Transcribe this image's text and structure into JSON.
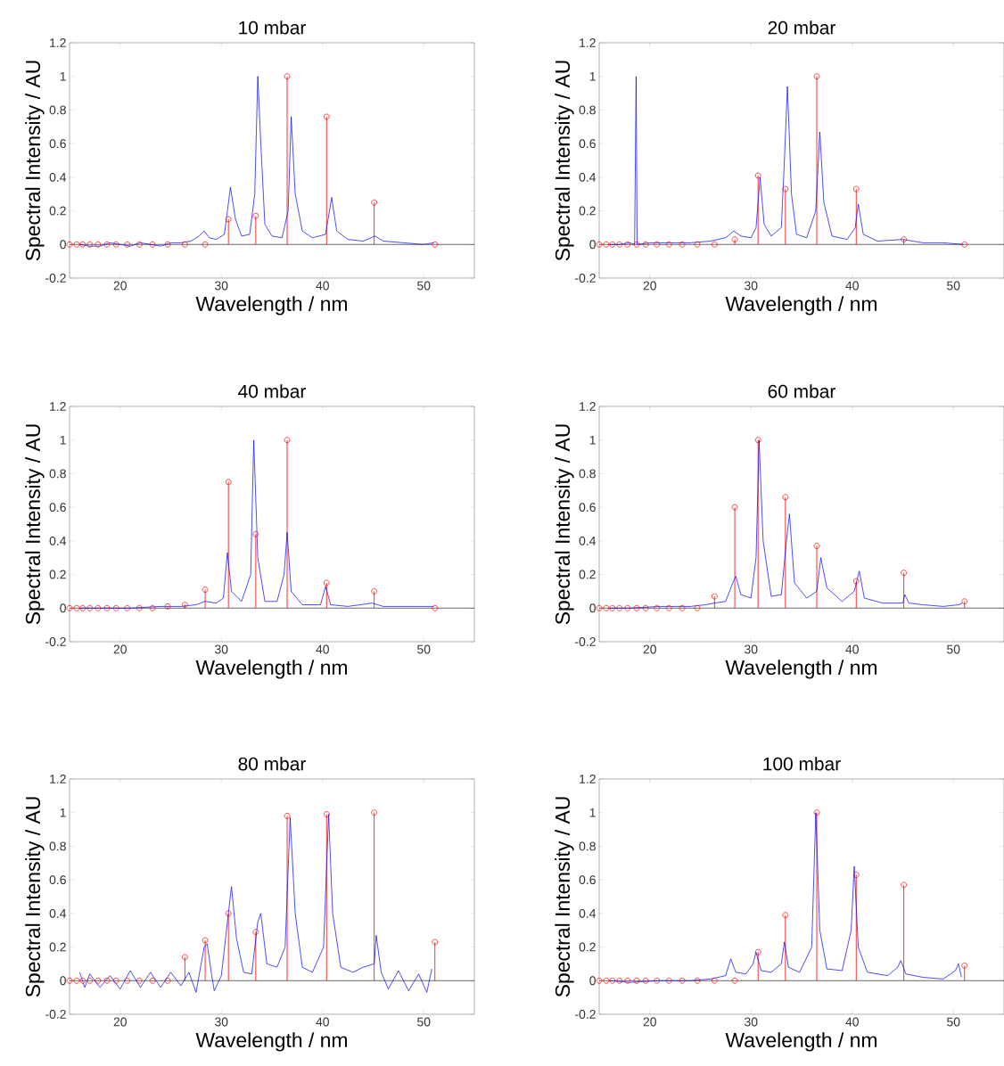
{
  "chart_data": [
    {
      "type": "line",
      "title": "10 mbar",
      "xlabel": "Wavelength / nm",
      "ylabel": "Spectral Intensity / AU",
      "xlim": [
        15,
        55
      ],
      "ylim": [
        -0.2,
        1.2
      ],
      "xticks": [
        20,
        30,
        40,
        50
      ],
      "yticks": [
        -0.2,
        0,
        0.2,
        0.4,
        0.6,
        0.8,
        1,
        1.2
      ],
      "grid": false,
      "ref_lines": [
        {
          "axis": "y",
          "value": 0,
          "color": "#000000"
        }
      ],
      "series": [
        {
          "color": "#0000ff",
          "marker": "none",
          "x": [
            16,
            17,
            18,
            19,
            20,
            21,
            22,
            23,
            24,
            25,
            26,
            27,
            27.8,
            28.3,
            28.8,
            29.5,
            30.3,
            30.9,
            31.4,
            32,
            32.8,
            33.3,
            33.6,
            33.9,
            34.3,
            35,
            36,
            36.6,
            36.9,
            37.3,
            38,
            39,
            40.3,
            40.9,
            41.4,
            42.5,
            44,
            45.2,
            46,
            48,
            50,
            51
          ],
          "values": [
            0,
            -0.01,
            -0.01,
            0.01,
            0,
            -0.01,
            0.01,
            0,
            -0.01,
            0.01,
            0.01,
            0.02,
            0.05,
            0.08,
            0.04,
            0.03,
            0.06,
            0.34,
            0.15,
            0.05,
            0.06,
            0.3,
            1.0,
            0.6,
            0.12,
            0.05,
            0.04,
            0.2,
            0.76,
            0.3,
            0.08,
            0.04,
            0.06,
            0.28,
            0.08,
            0.03,
            0.02,
            0.05,
            0.02,
            0.01,
            0,
            0.01
          ]
        },
        {
          "type": "lollipop",
          "color": "#ff0000",
          "marker": "circle",
          "x": [
            15.0,
            15.7,
            16.3,
            17.0,
            17.8,
            18.7,
            19.6,
            20.7,
            21.9,
            23.2,
            24.7,
            26.4,
            28.4,
            30.7,
            33.4,
            36.5,
            40.4,
            45.1,
            51.1
          ],
          "values": [
            0,
            0,
            0,
            0,
            0,
            0,
            0,
            0,
            0,
            0,
            0,
            0,
            0,
            0.15,
            0.17,
            1.0,
            0.76,
            0.25,
            0
          ]
        }
      ]
    },
    {
      "type": "line",
      "title": "20 mbar",
      "xlabel": "Wavelength / nm",
      "ylabel": "Spectral Intensity / AU",
      "xlim": [
        15,
        55
      ],
      "ylim": [
        -0.2,
        1.2
      ],
      "xticks": [
        20,
        30,
        40,
        50
      ],
      "yticks": [
        -0.2,
        0,
        0.2,
        0.4,
        0.6,
        0.8,
        1,
        1.2
      ],
      "grid": false,
      "ref_lines": [
        {
          "axis": "y",
          "value": 0,
          "color": "#000000"
        }
      ],
      "series": [
        {
          "color": "#0000ff",
          "marker": "none",
          "x": [
            16,
            17,
            18,
            18.5,
            18.65,
            18.75,
            20,
            22,
            24,
            26,
            27.5,
            28.3,
            29,
            30,
            30.5,
            30.9,
            31.3,
            32,
            33,
            33.3,
            33.6,
            34,
            34.5,
            35.5,
            36.4,
            36.8,
            37.2,
            38,
            39.5,
            40.3,
            40.6,
            41.1,
            42.5,
            45,
            47,
            49,
            51
          ],
          "values": [
            0,
            0,
            0.01,
            0,
            1.0,
            0,
            0.01,
            0.01,
            0.01,
            0.02,
            0.04,
            0.08,
            0.05,
            0.04,
            0.1,
            0.4,
            0.12,
            0.05,
            0.1,
            0.5,
            0.94,
            0.3,
            0.06,
            0.04,
            0.2,
            0.67,
            0.25,
            0.05,
            0.03,
            0.1,
            0.24,
            0.06,
            0.02,
            0.03,
            0.01,
            0.01,
            0
          ]
        },
        {
          "type": "lollipop",
          "color": "#ff0000",
          "marker": "circle",
          "x": [
            15.0,
            15.7,
            16.3,
            17.0,
            17.8,
            18.7,
            19.6,
            20.7,
            21.9,
            23.2,
            24.7,
            26.4,
            28.4,
            30.7,
            33.4,
            36.5,
            40.4,
            45.1,
            51.1
          ],
          "values": [
            0,
            0,
            0,
            0,
            0,
            0,
            0,
            0,
            0,
            0,
            0,
            0,
            0.03,
            0.41,
            0.33,
            1.0,
            0.33,
            0.03,
            0
          ]
        }
      ]
    },
    {
      "type": "line",
      "title": "40 mbar",
      "xlabel": "Wavelength / nm",
      "ylabel": "Spectral Intensity / AU",
      "xlim": [
        15,
        55
      ],
      "ylim": [
        -0.2,
        1.2
      ],
      "xticks": [
        20,
        30,
        40,
        50
      ],
      "yticks": [
        -0.2,
        0,
        0.2,
        0.4,
        0.6,
        0.8,
        1,
        1.2
      ],
      "grid": false,
      "ref_lines": [
        {
          "axis": "y",
          "value": 0,
          "color": "#000000"
        }
      ],
      "series": [
        {
          "color": "#0000ff",
          "marker": "none",
          "x": [
            16,
            18,
            21,
            24,
            26,
            27.5,
            28.4,
            29.5,
            30.2,
            30.6,
            31,
            32,
            32.9,
            33.2,
            33.6,
            34.3,
            35.5,
            36.2,
            36.5,
            36.9,
            38,
            39.8,
            40.3,
            40.8,
            42.5,
            44.9,
            46,
            48,
            50,
            51
          ],
          "values": [
            0,
            0,
            0,
            0.01,
            0.01,
            0.02,
            0.04,
            0.03,
            0.06,
            0.33,
            0.1,
            0.04,
            0.2,
            1.0,
            0.3,
            0.04,
            0.04,
            0.2,
            0.45,
            0.1,
            0.02,
            0.02,
            0.13,
            0.02,
            0.01,
            0.03,
            0.01,
            0.01,
            0.01,
            0.01
          ]
        },
        {
          "type": "lollipop",
          "color": "#ff0000",
          "marker": "circle",
          "x": [
            15.0,
            15.7,
            16.3,
            17.0,
            17.8,
            18.7,
            19.6,
            20.7,
            21.9,
            23.2,
            24.7,
            26.4,
            28.4,
            30.7,
            33.4,
            36.5,
            40.4,
            45.1,
            51.1
          ],
          "values": [
            0,
            0,
            0,
            0,
            0,
            0,
            0,
            0,
            0,
            0,
            0.01,
            0.02,
            0.11,
            0.75,
            0.44,
            1.0,
            0.15,
            0.1,
            0
          ]
        }
      ]
    },
    {
      "type": "line",
      "title": "60 mbar",
      "xlabel": "Wavelength / nm",
      "ylabel": "Spectral Intensity / AU",
      "xlim": [
        15,
        55
      ],
      "ylim": [
        -0.2,
        1.2
      ],
      "xticks": [
        20,
        30,
        40,
        50
      ],
      "yticks": [
        -0.2,
        0,
        0.2,
        0.4,
        0.6,
        0.8,
        1,
        1.2
      ],
      "grid": false,
      "ref_lines": [
        {
          "axis": "y",
          "value": 0,
          "color": "#000000"
        }
      ],
      "series": [
        {
          "color": "#0000ff",
          "marker": "none",
          "x": [
            16,
            18,
            21,
            24,
            25.5,
            26.4,
            27.5,
            28.2,
            28.5,
            29,
            30,
            30.5,
            30.8,
            31.2,
            32,
            33,
            33.5,
            33.8,
            34.3,
            35.5,
            36.5,
            36.9,
            37.5,
            39,
            40.2,
            40.7,
            41.2,
            43,
            45,
            45.2,
            45.6,
            47,
            49,
            50.5,
            50.9
          ],
          "values": [
            0,
            0,
            0.01,
            0.01,
            0.02,
            0.03,
            0.04,
            0.15,
            0.19,
            0.08,
            0.06,
            0.3,
            1.0,
            0.4,
            0.07,
            0.08,
            0.4,
            0.56,
            0.15,
            0.06,
            0.1,
            0.3,
            0.12,
            0.04,
            0.1,
            0.22,
            0.06,
            0.03,
            0.03,
            0.08,
            0.03,
            0.02,
            0.01,
            0.02,
            0.03
          ]
        },
        {
          "type": "lollipop",
          "color": "#ff0000",
          "marker": "circle",
          "x": [
            15.0,
            15.7,
            16.3,
            17.0,
            17.8,
            18.7,
            19.6,
            20.7,
            21.9,
            23.2,
            24.7,
            26.4,
            28.4,
            30.7,
            33.4,
            36.5,
            40.4,
            45.1,
            51.1
          ],
          "values": [
            0,
            0,
            0,
            0,
            0,
            0,
            0,
            0,
            0,
            0,
            0,
            0.07,
            0.6,
            1.0,
            0.66,
            0.37,
            0.16,
            0.21,
            0.04
          ]
        }
      ]
    },
    {
      "type": "line",
      "title": "80 mbar",
      "xlabel": "Wavelength / nm",
      "ylabel": "Spectral Intensity / AU",
      "xlim": [
        15,
        55
      ],
      "ylim": [
        -0.2,
        1.2
      ],
      "xticks": [
        20,
        30,
        40,
        50
      ],
      "yticks": [
        -0.2,
        0,
        0.2,
        0.4,
        0.6,
        0.8,
        1,
        1.2
      ],
      "grid": false,
      "ref_lines": [
        {
          "axis": "y",
          "value": 0,
          "color": "#000000"
        }
      ],
      "series": [
        {
          "color": "#0000ff",
          "marker": "none",
          "x": [
            16,
            16.5,
            17,
            18,
            19,
            20,
            21,
            22,
            23,
            24,
            25,
            26,
            26.8,
            27.5,
            28.3,
            28.6,
            29,
            29.3,
            30,
            30.6,
            31,
            31.5,
            32.2,
            33,
            33.6,
            33.9,
            34.5,
            35.5,
            36.3,
            36.8,
            37.3,
            38,
            39,
            40.1,
            40.6,
            41,
            41.8,
            43,
            44,
            45.1,
            45.3,
            45.8,
            46.5,
            47.5,
            48.5,
            49.5,
            50.3,
            50.8
          ],
          "values": [
            0.05,
            -0.04,
            0.04,
            -0.04,
            0.03,
            -0.05,
            0.06,
            -0.04,
            0.05,
            -0.04,
            0.05,
            -0.03,
            0.05,
            -0.07,
            0.2,
            0.22,
            0.05,
            -0.06,
            0.03,
            0.35,
            0.56,
            0.25,
            0.05,
            0.04,
            0.35,
            0.4,
            0.1,
            0.08,
            0.2,
            0.97,
            0.4,
            0.08,
            0.05,
            0.2,
            0.99,
            0.4,
            0.08,
            0.05,
            0.08,
            0.1,
            0.27,
            0.05,
            -0.05,
            0.06,
            -0.06,
            0.04,
            -0.07,
            0.07
          ]
        },
        {
          "type": "lollipop",
          "color": "#ff0000",
          "marker": "circle",
          "x": [
            15.0,
            15.7,
            16.3,
            17.0,
            17.8,
            18.7,
            19.6,
            20.7,
            21.9,
            23.2,
            24.7,
            26.4,
            28.4,
            30.7,
            33.4,
            36.5,
            40.4,
            45.1,
            51.1
          ],
          "values": [
            0,
            0,
            0,
            0,
            0,
            0,
            0,
            0,
            0,
            0,
            0,
            0.14,
            0.24,
            0.4,
            0.29,
            0.98,
            0.99,
            1.0,
            0.23
          ]
        }
      ]
    },
    {
      "type": "line",
      "title": "100 mbar",
      "xlabel": "Wavelength / nm",
      "ylabel": "Spectral Intensity / AU",
      "xlim": [
        15,
        55
      ],
      "ylim": [
        -0.2,
        1.2
      ],
      "xticks": [
        20,
        30,
        40,
        50
      ],
      "yticks": [
        -0.2,
        0,
        0.2,
        0.4,
        0.6,
        0.8,
        1,
        1.2
      ],
      "grid": false,
      "ref_lines": [
        {
          "axis": "y",
          "value": 0,
          "color": "#000000"
        }
      ],
      "series": [
        {
          "color": "#0000ff",
          "marker": "none",
          "x": [
            16,
            18,
            21,
            24,
            26,
            27.5,
            28,
            28.5,
            29.5,
            30.2,
            30.5,
            31,
            32,
            33,
            33.3,
            33.7,
            34.8,
            36,
            36.4,
            36.8,
            37.5,
            39,
            39.9,
            40.2,
            40.6,
            41.5,
            43.5,
            44.5,
            44.8,
            45.3,
            47,
            49,
            50.2,
            50.5,
            50.8
          ],
          "values": [
            0,
            -0.01,
            0,
            0,
            0.01,
            0.03,
            0.13,
            0.05,
            0.04,
            0.1,
            0.17,
            0.06,
            0.05,
            0.1,
            0.23,
            0.08,
            0.05,
            0.2,
            1.0,
            0.3,
            0.07,
            0.06,
            0.3,
            0.68,
            0.2,
            0.05,
            0.03,
            0.08,
            0.12,
            0.04,
            0.02,
            0.01,
            0.06,
            0.1,
            0.02
          ]
        },
        {
          "type": "lollipop",
          "color": "#ff0000",
          "marker": "circle",
          "x": [
            15.0,
            15.7,
            16.3,
            17.0,
            17.8,
            18.7,
            19.6,
            20.7,
            21.9,
            23.2,
            24.7,
            26.4,
            28.4,
            30.7,
            33.4,
            36.5,
            40.4,
            45.1,
            51.1
          ],
          "values": [
            0,
            0,
            0,
            0,
            0,
            0,
            0,
            0,
            0,
            0,
            0,
            0,
            0,
            0.17,
            0.39,
            1.0,
            0.63,
            0.57,
            0.09
          ]
        }
      ]
    }
  ]
}
